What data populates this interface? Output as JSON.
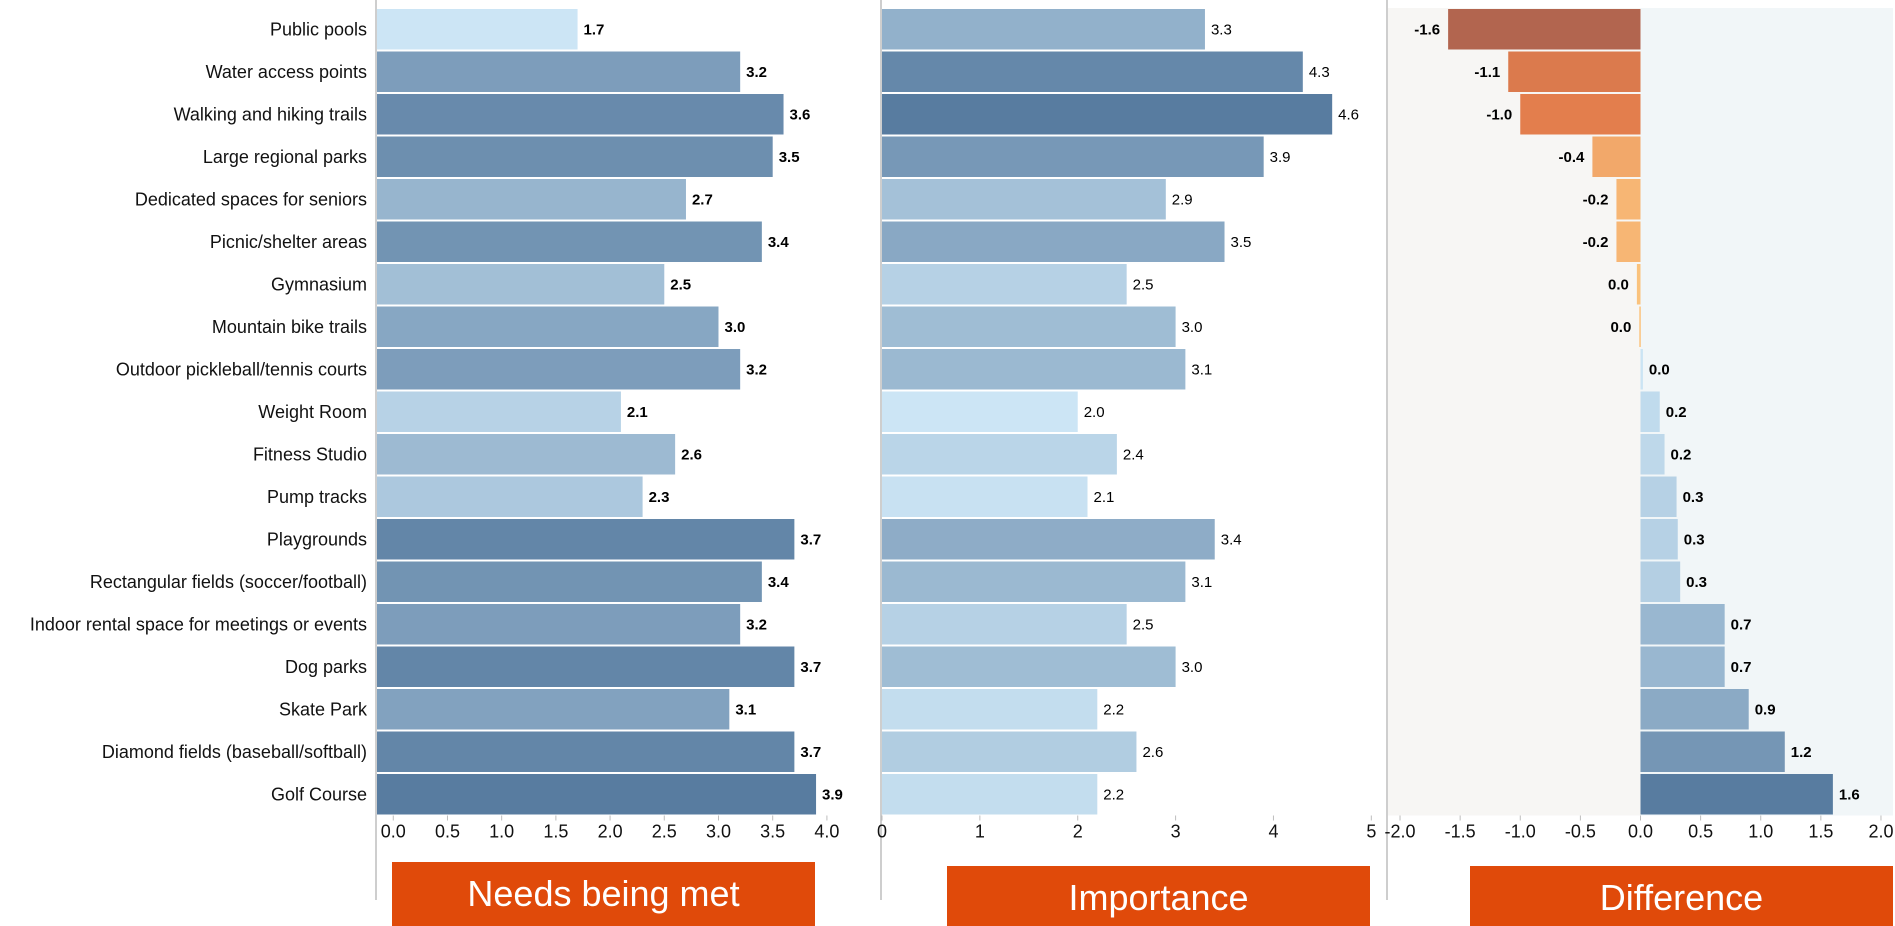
{
  "chart_data": {
    "type": "bar",
    "orientation": "horizontal",
    "categories": [
      "Public pools",
      "Water access points",
      "Walking and hiking trails",
      "Large regional parks",
      "Dedicated spaces for seniors",
      "Picnic/shelter areas",
      "Gymnasium",
      "Mountain bike trails",
      "Outdoor pickleball/tennis courts",
      "Weight Room",
      "Fitness Studio",
      "Pump tracks",
      "Playgrounds",
      "Rectangular fields (soccer/football)",
      "Indoor rental space for meetings or events",
      "Dog parks",
      "Skate Park",
      "Diamond fields (baseball/softball)",
      "Golf Course"
    ],
    "panels": [
      {
        "title": "Needs being met",
        "values": [
          1.7,
          3.2,
          3.6,
          3.5,
          2.7,
          3.4,
          2.5,
          3.0,
          3.2,
          2.1,
          2.6,
          2.3,
          3.7,
          3.4,
          3.2,
          3.7,
          3.1,
          3.7,
          3.9
        ],
        "labels": [
          "1.7",
          "3.2",
          "3.6",
          "3.5",
          "2.7",
          "3.4",
          "2.5",
          "3.0",
          "3.2",
          "2.1",
          "2.6",
          "2.3",
          "3.7",
          "3.4",
          "3.2",
          "3.7",
          "3.1",
          "3.7",
          "3.9"
        ],
        "xlim": [
          -0.15,
          4.25
        ],
        "ticks": [
          "0.0",
          "0.5",
          "1.0",
          "1.5",
          "2.0",
          "2.5",
          "3.0",
          "3.5",
          "4.0"
        ],
        "tick_values": [
          0,
          0.5,
          1.0,
          1.5,
          2.0,
          2.5,
          3.0,
          3.5,
          4.0
        ]
      },
      {
        "title": "Importance",
        "values": [
          3.3,
          4.3,
          4.6,
          3.9,
          2.9,
          3.5,
          2.5,
          3.0,
          3.1,
          2.0,
          2.4,
          2.1,
          3.4,
          3.1,
          2.5,
          3.0,
          2.2,
          2.6,
          2.2
        ],
        "labels": [
          "3.3",
          "4.3",
          "4.6",
          "3.9",
          "2.9",
          "3.5",
          "2.5",
          "3.0",
          "3.1",
          "2.0",
          "2.4",
          "2.1",
          "3.4",
          "3.1",
          "2.5",
          "3.0",
          "2.2",
          "2.6",
          "2.2"
        ],
        "xlim": [
          0,
          5.15
        ],
        "ticks": [
          "0",
          "1",
          "2",
          "3",
          "4",
          "5"
        ],
        "tick_values": [
          0,
          1,
          2,
          3,
          4,
          5
        ]
      },
      {
        "title": "Difference",
        "values": [
          -1.6,
          -1.1,
          -1.0,
          -0.4,
          -0.2,
          -0.2,
          -0.03,
          -0.01,
          0.02,
          0.16,
          0.2,
          0.3,
          0.31,
          0.33,
          0.7,
          0.7,
          0.9,
          1.2,
          1.6
        ],
        "labels": [
          "-1.6",
          "-1.1",
          "-1.0",
          "-0.4",
          "-0.2",
          "-0.2",
          "0.0",
          "0.0",
          "0.0",
          "0.2",
          "0.2",
          "0.3",
          "0.3",
          "0.3",
          "0.7",
          "0.7",
          "0.9",
          "1.2",
          "1.6"
        ],
        "xlim": [
          -2.1,
          2.1
        ],
        "ticks": [
          "-2.0",
          "-1.5",
          "-1.0",
          "-0.5",
          "0.0",
          "0.5",
          "1.0",
          "1.5",
          "2.0"
        ],
        "tick_values": [
          -2.0,
          -1.5,
          -1.0,
          -0.5,
          0,
          0.5,
          1.0,
          1.5,
          2.0
        ]
      }
    ],
    "colors": {
      "blue_light": "#cce5f5",
      "blue_dark": "#587ca0",
      "orange_light": "#fbc47e",
      "orange_mid": "#e6804d",
      "orange_dark": "#b2654f",
      "title_bg": "#e04a0a",
      "axis": "#bdbdbd",
      "negative_bg": "#f7f6f4",
      "positive_bg": "#f1f6f8"
    },
    "grid": false,
    "legend": "none"
  }
}
